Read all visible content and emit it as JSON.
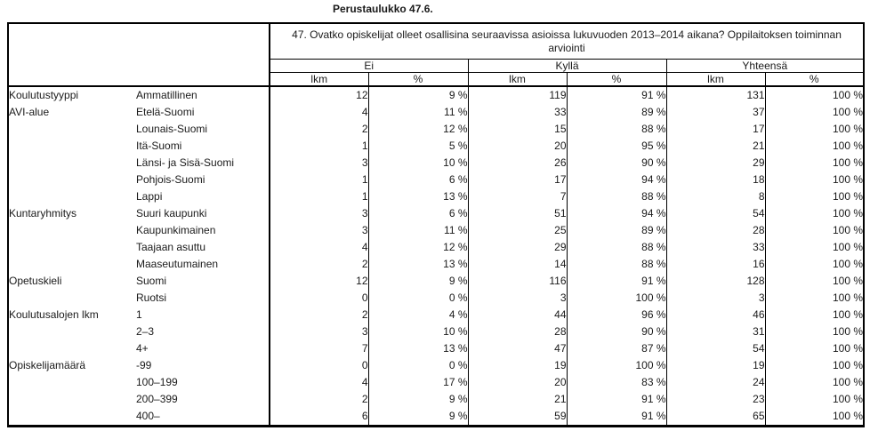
{
  "title": "Perustaulukko 47.6.",
  "colors": {
    "background": "#ffffff",
    "border": "#000000",
    "text": "#1a1a1a"
  },
  "table": {
    "question": "47. Ovatko opiskelijat olleet osallisina seuraavissa asioissa lukuvuoden 2013–2014 aikana? Oppilaitoksen toiminnan arviointi",
    "groups": [
      {
        "label": "Ei"
      },
      {
        "label": "Kyllä"
      },
      {
        "label": "Yhteensä"
      }
    ],
    "subheaders": [
      "lkm",
      "%",
      "lkm",
      "%",
      "lkm",
      "%"
    ],
    "rows": [
      {
        "category": "Koulutustyyppi",
        "label": "Ammatillinen",
        "values": [
          "12",
          "9 %",
          "119",
          "91 %",
          "131",
          "100 %"
        ]
      },
      {
        "category": "AVI-alue",
        "label": "Etelä-Suomi",
        "values": [
          "4",
          "11 %",
          "33",
          "89 %",
          "37",
          "100 %"
        ]
      },
      {
        "category": "",
        "label": "Lounais-Suomi",
        "values": [
          "2",
          "12 %",
          "15",
          "88 %",
          "17",
          "100 %"
        ]
      },
      {
        "category": "",
        "label": "Itä-Suomi",
        "values": [
          "1",
          "5 %",
          "20",
          "95 %",
          "21",
          "100 %"
        ]
      },
      {
        "category": "",
        "label": "Länsi- ja Sisä-Suomi",
        "values": [
          "3",
          "10 %",
          "26",
          "90 %",
          "29",
          "100 %"
        ]
      },
      {
        "category": "",
        "label": "Pohjois-Suomi",
        "values": [
          "1",
          "6 %",
          "17",
          "94 %",
          "18",
          "100 %"
        ]
      },
      {
        "category": "",
        "label": "Lappi",
        "values": [
          "1",
          "13 %",
          "7",
          "88 %",
          "8",
          "100 %"
        ]
      },
      {
        "category": "Kuntaryhmitys",
        "label": "Suuri kaupunki",
        "values": [
          "3",
          "6 %",
          "51",
          "94 %",
          "54",
          "100 %"
        ]
      },
      {
        "category": "",
        "label": "Kaupunkimainen",
        "values": [
          "3",
          "11 %",
          "25",
          "89 %",
          "28",
          "100 %"
        ]
      },
      {
        "category": "",
        "label": "Taajaan asuttu",
        "values": [
          "4",
          "12 %",
          "29",
          "88 %",
          "33",
          "100 %"
        ]
      },
      {
        "category": "",
        "label": "Maaseutumainen",
        "values": [
          "2",
          "13 %",
          "14",
          "88 %",
          "16",
          "100 %"
        ]
      },
      {
        "category": "Opetuskieli",
        "label": "Suomi",
        "values": [
          "12",
          "9 %",
          "116",
          "91 %",
          "128",
          "100 %"
        ]
      },
      {
        "category": "",
        "label": "Ruotsi",
        "values": [
          "0",
          "0 %",
          "3",
          "100 %",
          "3",
          "100 %"
        ]
      },
      {
        "category": "Koulutusalojen lkm",
        "label": "1",
        "values": [
          "2",
          "4 %",
          "44",
          "96 %",
          "46",
          "100 %"
        ]
      },
      {
        "category": "",
        "label": "2–3",
        "values": [
          "3",
          "10 %",
          "28",
          "90 %",
          "31",
          "100 %"
        ]
      },
      {
        "category": "",
        "label": "4+",
        "values": [
          "7",
          "13 %",
          "47",
          "87 %",
          "54",
          "100 %"
        ]
      },
      {
        "category": "Opiskelijamäärä",
        "label": "-99",
        "values": [
          "0",
          "0 %",
          "19",
          "100 %",
          "19",
          "100 %"
        ]
      },
      {
        "category": "",
        "label": "100–199",
        "values": [
          "4",
          "17 %",
          "20",
          "83 %",
          "24",
          "100 %"
        ]
      },
      {
        "category": "",
        "label": "200–399",
        "values": [
          "2",
          "9 %",
          "21",
          "91 %",
          "23",
          "100 %"
        ]
      },
      {
        "category": "",
        "label": "400–",
        "values": [
          "6",
          "9 %",
          "59",
          "91 %",
          "65",
          "100 %"
        ]
      }
    ]
  }
}
